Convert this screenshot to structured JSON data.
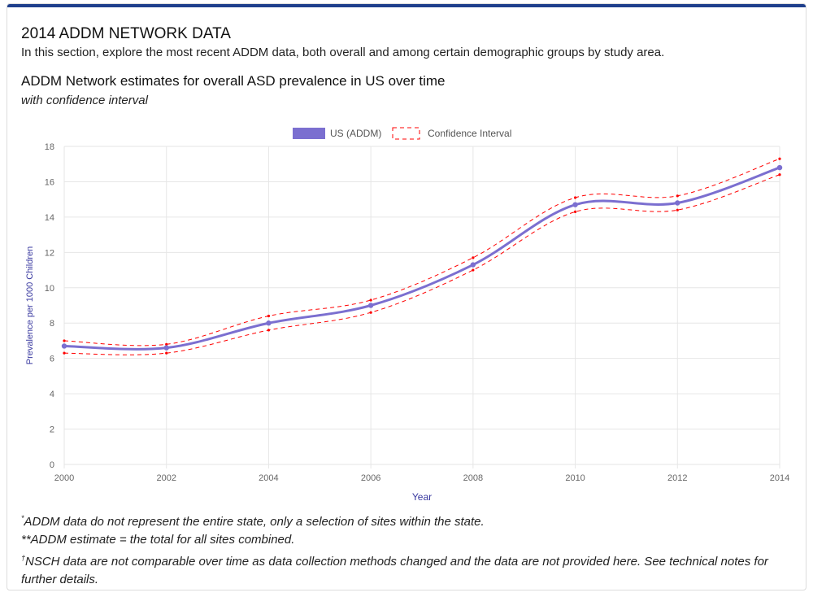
{
  "section": {
    "title": "2014 ADDM NETWORK DATA",
    "description": "In this section, explore the most recent ADDM data, both overall and among certain demographic groups by study area."
  },
  "chart_header": {
    "title": "ADDM Network estimates for overall ASD prevalence in US over time",
    "subtitle": "with confidence interval"
  },
  "colors": {
    "topbar": "#1f3f8c",
    "series": "#7b6fd0",
    "ci": "#ff0000",
    "grid": "#e6e6e6",
    "axis_label": "#3a3aa0"
  },
  "chart_data": {
    "type": "line",
    "xlabel": "Year",
    "ylabel": "Prevalence per 1000 Children",
    "x": [
      2000,
      2002,
      2004,
      2006,
      2008,
      2010,
      2012,
      2014
    ],
    "xlim": [
      2000,
      2014
    ],
    "ylim": [
      0,
      18
    ],
    "x_ticks": [
      "2000",
      "2002",
      "2004",
      "2006",
      "2008",
      "2010",
      "2012",
      "2014"
    ],
    "y_ticks": [
      "0",
      "2",
      "4",
      "6",
      "8",
      "10",
      "12",
      "14",
      "16",
      "18"
    ],
    "grid": true,
    "legend_position": "top-center",
    "series": [
      {
        "name": "US (ADDM)",
        "style": "solid",
        "values": [
          6.7,
          6.6,
          8.0,
          9.0,
          11.3,
          14.7,
          14.8,
          16.8
        ]
      },
      {
        "name": "Confidence Interval",
        "style": "dashed",
        "upper": [
          7.0,
          6.8,
          8.4,
          9.3,
          11.7,
          15.1,
          15.2,
          17.3
        ],
        "lower": [
          6.3,
          6.3,
          7.6,
          8.6,
          11.0,
          14.3,
          14.4,
          16.4
        ]
      }
    ]
  },
  "notes": [
    {
      "mark": "*",
      "text": "ADDM data do not represent the entire state, only a selection of sites within the state."
    },
    {
      "mark": "",
      "text": "**ADDM estimate = the total for all sites combined."
    },
    {
      "mark": "†",
      "text": "NSCH data are not comparable over time as data collection methods changed and the data are not provided here. See technical notes for further details."
    }
  ]
}
